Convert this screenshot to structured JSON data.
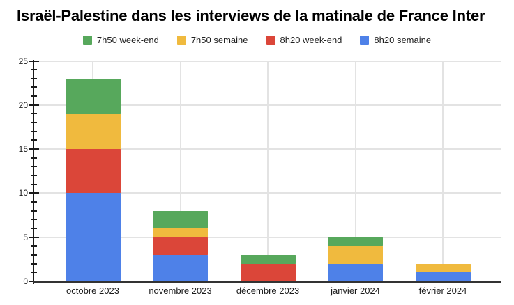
{
  "title": "Israël-Palestine dans les interviews de la matinale de France Inter",
  "chart_data": {
    "type": "bar",
    "stacked": true,
    "title": "Israël-Palestine dans les interviews de la matinale de France Inter",
    "categories": [
      "octobre 2023",
      "novembre 2023",
      "décembre 2023",
      "janvier 2024",
      "février 2024"
    ],
    "series": [
      {
        "name": "7h50 week-end",
        "color": "#57A85C",
        "values": [
          4,
          2,
          1,
          1,
          0
        ]
      },
      {
        "name": "7h50 semaine",
        "color": "#F0BA3E",
        "values": [
          4,
          1,
          0,
          2,
          1
        ]
      },
      {
        "name": "8h20 week-end",
        "color": "#DB4639",
        "values": [
          5,
          2,
          2,
          0,
          0
        ]
      },
      {
        "name": "8h20 semaine",
        "color": "#4E81E8",
        "values": [
          10,
          3,
          0,
          2,
          1
        ]
      }
    ],
    "stack_order_bottom_to_top": [
      "8h20 semaine",
      "8h20 week-end",
      "7h50 semaine",
      "7h50 week-end"
    ],
    "totals": [
      23,
      8,
      3,
      5,
      2
    ],
    "xlabel": "",
    "ylabel": "",
    "ylim": [
      0,
      25
    ],
    "yticks": [
      0,
      5,
      10,
      15,
      20,
      25
    ],
    "minor_tick_step": 1,
    "legend_position": "top",
    "grid": true,
    "colors": {
      "background": "#ffffff",
      "gridline": "#e3e3e3",
      "axis": "#1a1a1a",
      "baseline": "#333333",
      "text": "#1a1a1a"
    }
  }
}
